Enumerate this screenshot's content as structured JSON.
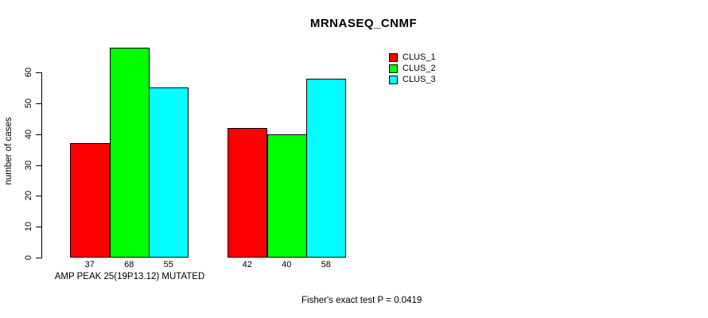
{
  "chart_data": {
    "type": "bar",
    "title": "MRNASEQ_CNMF",
    "ylabel": "number of cases",
    "ylim": [
      0,
      60
    ],
    "yticks": [
      0,
      10,
      20,
      30,
      40,
      50,
      60
    ],
    "grid": false,
    "legend_position": "top-right",
    "series": [
      {
        "name": "CLUS_1",
        "color": "#ff0000"
      },
      {
        "name": "CLUS_2",
        "color": "#00ff00"
      },
      {
        "name": "CLUS_3",
        "color": "#00ffff"
      }
    ],
    "groups": [
      {
        "label": "AMP PEAK 25(19P13.12) MUTATED",
        "values": [
          37,
          68,
          55
        ]
      },
      {
        "label": "",
        "values": [
          42,
          40,
          58
        ]
      }
    ],
    "bar_value_labels_shown": true,
    "annotation": "Fisher's exact test P = 0.0419",
    "colors": {
      "axis": "#000000",
      "text": "#000000",
      "background": "#ffffff"
    }
  }
}
